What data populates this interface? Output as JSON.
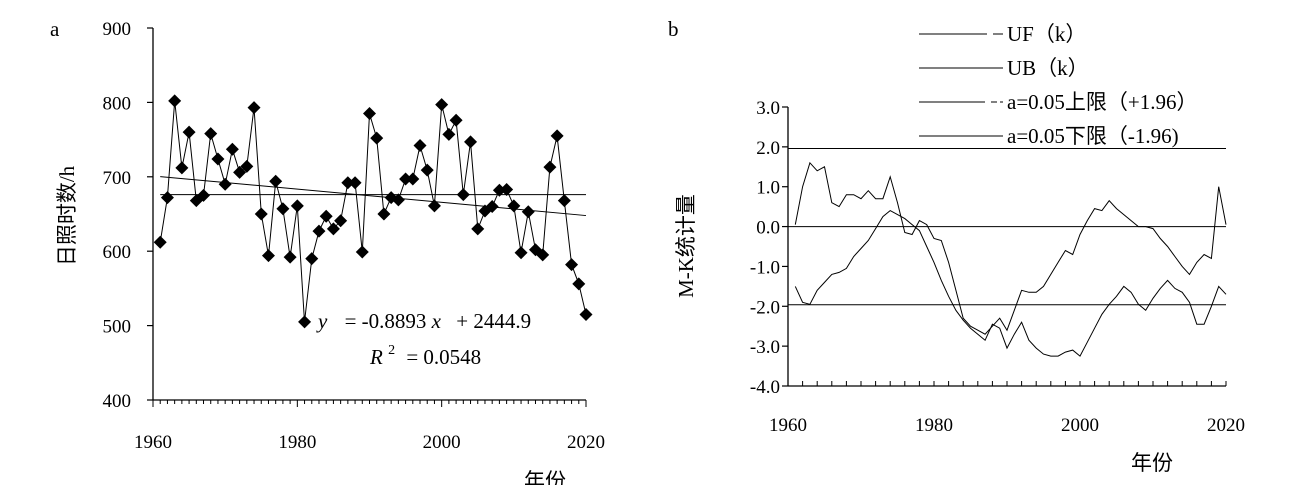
{
  "chart_data": [
    {
      "panel": "a",
      "type": "scatter",
      "xlabel": "年份",
      "ylabel": "日照时数/h",
      "xlim": [
        1960,
        2020
      ],
      "ylim": [
        400,
        900
      ],
      "xticks": [
        "1960",
        "1980",
        "2000",
        "2020"
      ],
      "yticks": [
        "400",
        "500",
        "600",
        "700",
        "800",
        "900"
      ],
      "series": [
        {
          "x": [
            1961,
            1962,
            1963,
            1964,
            1965,
            1966,
            1967,
            1968,
            1969,
            1970,
            1971,
            1972,
            1973,
            1974,
            1975,
            1976,
            1977,
            1978,
            1979,
            1980,
            1981,
            1982,
            1983,
            1984,
            1985,
            1986,
            1987,
            1988,
            1989,
            1990,
            1991,
            1992,
            1993,
            1994,
            1995,
            1996,
            1997,
            1998,
            1999,
            2000,
            2001,
            2002,
            2003,
            2004,
            2005,
            2006,
            2007,
            2008,
            2009,
            2010,
            2011,
            2012,
            2013,
            2014,
            2015,
            2016,
            2017,
            2018,
            2019,
            2020
          ],
          "y": [
            612,
            672,
            802,
            712,
            760,
            668,
            675,
            758,
            724,
            690,
            737,
            706,
            714,
            793,
            650,
            594,
            694,
            657,
            592,
            661,
            505,
            590,
            627,
            647,
            630,
            641,
            692,
            692,
            599,
            785,
            752,
            650,
            672,
            669,
            697,
            697,
            742,
            709,
            661,
            797,
            757,
            776,
            676,
            747,
            630,
            654,
            660,
            682,
            683,
            661,
            598,
            653,
            602,
            595,
            713,
            755,
            668,
            582,
            556,
            515
          ]
        }
      ],
      "fits": [
        {
          "kind": "linear",
          "x0": 1961,
          "y0": 700.3,
          "x1": 2020,
          "y1": 647.9
        },
        {
          "kind": "mean",
          "y": 676
        }
      ],
      "annotations": {
        "equation": "y = -0.8893x + 2444.9",
        "equation_y": "y",
        "equation_rest": "= -0.8893",
        "equation_x": "x",
        "equation_tail": "+ 2444.9",
        "r2_r": "R",
        "r2_exp": "2",
        "r2_rest": "= 0.0548"
      }
    },
    {
      "panel": "b",
      "type": "line",
      "xlabel": "年份",
      "ylabel": "M-K统计量",
      "xlim": [
        1960,
        2020
      ],
      "ylim": [
        -4,
        3
      ],
      "xticks": [
        "1960",
        "1980",
        "2000",
        "2020"
      ],
      "yticks": [
        "3.0",
        "2.0",
        "1.0",
        "0.0",
        "-1.0",
        "-2.0",
        "-3.0",
        "-4.0"
      ],
      "legend": [
        "UF（k）",
        "UB（k）",
        "a=0.05上限（+1.96）",
        "a=0.05下限（-1.96)"
      ],
      "series": [
        {
          "name": "UF（k）",
          "x": [
            1961,
            1962,
            1963,
            1964,
            1965,
            1966,
            1967,
            1968,
            1969,
            1970,
            1971,
            1972,
            1973,
            1974,
            1975,
            1976,
            1977,
            1978,
            1979,
            1980,
            1981,
            1982,
            1983,
            1984,
            1985,
            1986,
            1987,
            1988,
            1989,
            1990,
            1991,
            1992,
            1993,
            1994,
            1995,
            1996,
            1997,
            1998,
            1999,
            2000,
            2001,
            2002,
            2003,
            2004,
            2005,
            2006,
            2007,
            2008,
            2009,
            2010,
            2011,
            2012,
            2013,
            2014,
            2015,
            2016,
            2017,
            2018,
            2019,
            2020
          ],
          "y": [
            -1.5,
            -1.9,
            -1.95,
            -1.6,
            -1.4,
            -1.2,
            -1.15,
            -1.05,
            -0.75,
            -0.55,
            -0.35,
            -0.05,
            0.25,
            0.4,
            0.3,
            0.2,
            0.05,
            -0.1,
            -0.5,
            -0.9,
            -1.35,
            -1.75,
            -2.1,
            -2.35,
            -2.55,
            -2.7,
            -2.85,
            -2.45,
            -2.55,
            -3.05,
            -2.7,
            -2.4,
            -2.85,
            -3.05,
            -3.2,
            -3.25,
            -3.25,
            -3.15,
            -3.1,
            -3.25,
            -2.9,
            -2.55,
            -2.2,
            -1.95,
            -1.75,
            -1.5,
            -1.65,
            -1.95,
            -2.1,
            -1.8,
            -1.55,
            -1.35,
            -1.55,
            -1.65,
            -1.9,
            -2.45,
            -2.45,
            -2.0,
            -1.5,
            -1.7
          ]
        },
        {
          "name": "UB（k）",
          "x": [
            1961,
            1962,
            1963,
            1964,
            1965,
            1966,
            1967,
            1968,
            1969,
            1970,
            1971,
            1972,
            1973,
            1974,
            1975,
            1976,
            1977,
            1978,
            1979,
            1980,
            1981,
            1982,
            1983,
            1984,
            1985,
            1986,
            1987,
            1988,
            1989,
            1990,
            1991,
            1992,
            1993,
            1994,
            1995,
            1996,
            1997,
            1998,
            1999,
            2000,
            2001,
            2002,
            2003,
            2004,
            2005,
            2006,
            2007,
            2008,
            2009,
            2010,
            2011,
            2012,
            2013,
            2014,
            2015,
            2016,
            2017,
            2018,
            2019,
            2020
          ],
          "y": [
            0.05,
            1.0,
            1.6,
            1.4,
            1.5,
            0.6,
            0.5,
            0.8,
            0.8,
            0.7,
            0.9,
            0.7,
            0.7,
            1.25,
            0.6,
            -0.15,
            -0.2,
            0.15,
            0.05,
            -0.3,
            -0.35,
            -0.9,
            -1.6,
            -2.3,
            -2.5,
            -2.6,
            -2.7,
            -2.5,
            -2.3,
            -2.6,
            -2.1,
            -1.6,
            -1.65,
            -1.65,
            -1.5,
            -1.2,
            -0.9,
            -0.6,
            -0.7,
            -0.2,
            0.15,
            0.45,
            0.4,
            0.65,
            0.45,
            0.3,
            0.15,
            0.0,
            0.0,
            -0.05,
            -0.3,
            -0.5,
            -0.75,
            -1.0,
            -1.2,
            -0.9,
            -0.7,
            -0.8,
            1.0,
            0.05
          ]
        },
        {
          "name": "a=0.05上限（+1.96）",
          "y": 1.96
        },
        {
          "name": "a=0.05下限（-1.96)",
          "y": -1.96
        }
      ]
    }
  ]
}
